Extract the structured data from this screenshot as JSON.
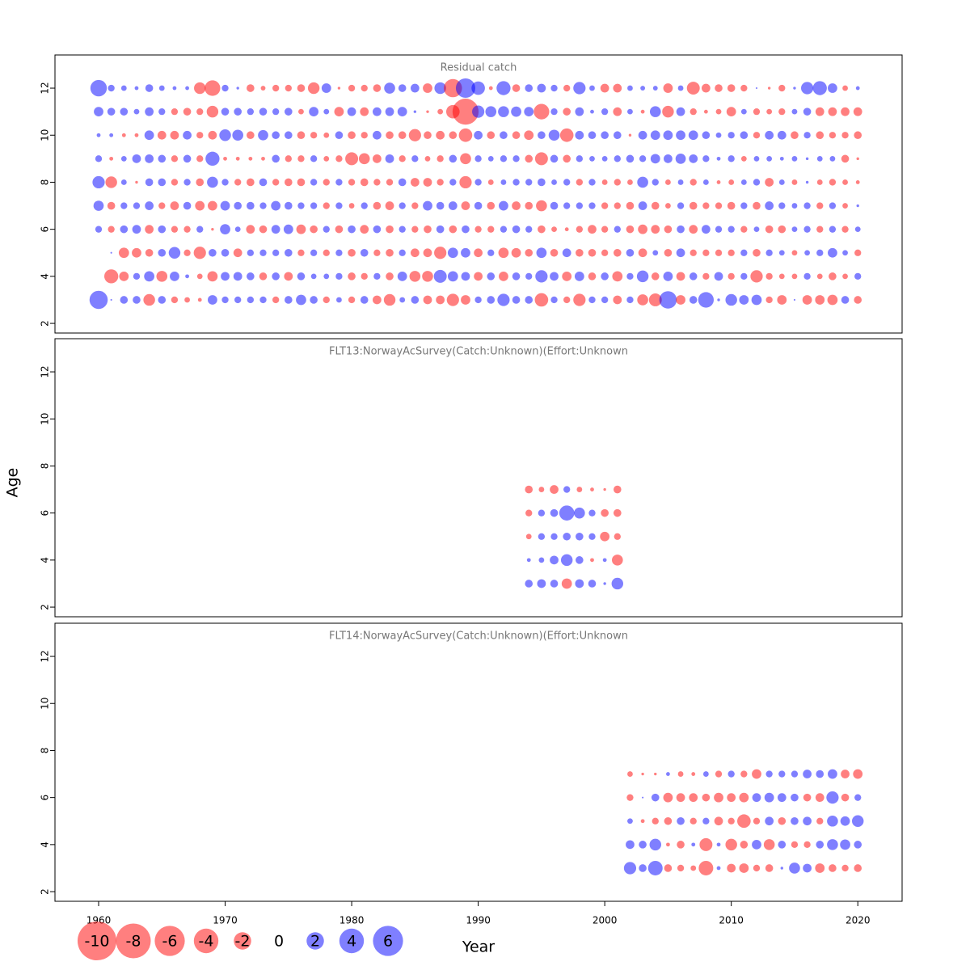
{
  "xlabel": "Year",
  "ylabel": "Age",
  "negative_color": "rgba(255,0,0,0.5)",
  "positive_color": "rgba(0,0,255,0.5)",
  "size_legend": [
    -10,
    -8,
    -6,
    -4,
    -2,
    0,
    2,
    4,
    6
  ],
  "chart_data": [
    {
      "type": "bubble",
      "title": "Residual catch",
      "x": [
        1960,
        1961,
        1962,
        1963,
        1964,
        1965,
        1966,
        1967,
        1968,
        1969,
        1970,
        1971,
        1972,
        1973,
        1974,
        1975,
        1976,
        1977,
        1978,
        1979,
        1980,
        1981,
        1982,
        1983,
        1984,
        1985,
        1986,
        1987,
        1988,
        1989,
        1990,
        1991,
        1992,
        1993,
        1994,
        1995,
        1996,
        1997,
        1998,
        1999,
        2000,
        2001,
        2002,
        2003,
        2004,
        2005,
        2006,
        2007,
        2008,
        2009,
        2010,
        2011,
        2012,
        2013,
        2014,
        2015,
        2016,
        2017,
        2018,
        2019,
        2020
      ],
      "ages": [
        3,
        4,
        5,
        6,
        7,
        8,
        9,
        10,
        11,
        12
      ],
      "residuals": [
        [
          2.2,
          0.02,
          0.4,
          0.4,
          -0.9,
          0.4,
          -0.3,
          -0.2,
          -0.1,
          0.6,
          0.3,
          0.3,
          0.3,
          0.3,
          -0.3,
          0.4,
          0.7,
          0.4,
          -0.3,
          0.2,
          -0.3,
          0.4,
          -0.5,
          -0.9,
          0.2,
          0.4,
          -0.5,
          -0.5,
          -1.0,
          -0.6,
          0.3,
          0.4,
          1.0,
          0.4,
          0.4,
          -1.2,
          0.3,
          -0.3,
          -1.0,
          0.3,
          0.3,
          -0.5,
          0.3,
          -0.8,
          -1.1,
          2.0,
          -0.6,
          0.4,
          1.6,
          0.05,
          0.9,
          0.6,
          0.7,
          -0.3,
          -0.6,
          0.02,
          -0.6,
          -0.6,
          -0.7,
          0.4,
          -0.4
        ],
        [
          null,
          -1.3,
          -0.6,
          0.3,
          0.7,
          -0.8,
          0.6,
          0.1,
          -0.2,
          -0.7,
          0.5,
          0.5,
          0.4,
          -0.4,
          0.4,
          -0.5,
          0.4,
          0.2,
          0.2,
          0.3,
          -0.4,
          -0.3,
          0.3,
          -0.4,
          0.6,
          -0.8,
          -0.8,
          1.1,
          0.7,
          0.5,
          -0.5,
          0.4,
          -0.6,
          0.4,
          0.3,
          1.0,
          0.5,
          -0.6,
          0.6,
          -0.4,
          0.4,
          -0.7,
          0.3,
          0.9,
          -0.4,
          0.6,
          -0.5,
          0.4,
          -0.3,
          0.5,
          -0.3,
          0.3,
          -1.0,
          -0.3,
          -0.2,
          -0.2,
          0.3,
          -0.2,
          -0.4,
          -0.2,
          0.3
        ],
        [
          null,
          0.02,
          -0.7,
          -0.6,
          -0.4,
          0.4,
          0.9,
          -0.3,
          -1.0,
          0.4,
          0.4,
          -0.5,
          0.3,
          0.3,
          0.3,
          0.4,
          -0.3,
          0.3,
          -0.3,
          0.3,
          -0.4,
          0.4,
          -0.3,
          -0.4,
          0.3,
          -0.5,
          -0.5,
          -1.0,
          0.7,
          0.6,
          -0.5,
          0.3,
          -0.7,
          -0.6,
          -0.4,
          0.7,
          -0.4,
          0.5,
          -0.4,
          -0.4,
          -0.3,
          -0.4,
          0.4,
          -0.5,
          0.2,
          -0.4,
          0.5,
          -0.3,
          -0.3,
          -0.3,
          -0.3,
          0.3,
          -0.4,
          0.3,
          0.2,
          -0.2,
          0.2,
          0.3,
          0.6,
          0.2,
          -0.3
        ],
        [
          0.3,
          -0.3,
          0.4,
          0.5,
          -0.5,
          0.4,
          -0.3,
          -0.3,
          0.3,
          -0.05,
          0.7,
          0.2,
          -0.5,
          -0.4,
          0.5,
          0.6,
          -0.6,
          -0.4,
          0.3,
          -0.4,
          0.4,
          -0.5,
          0.4,
          -0.4,
          0.3,
          -0.3,
          -0.4,
          0.4,
          -0.4,
          0.4,
          -0.3,
          -0.3,
          0.3,
          0.4,
          0.3,
          -0.4,
          -0.2,
          -0.1,
          -0.3,
          -0.5,
          -0.3,
          0.3,
          -0.4,
          -0.6,
          -0.5,
          -0.4,
          0.4,
          -0.5,
          0.5,
          0.3,
          0.3,
          -0.3,
          0.2,
          -0.4,
          -0.4,
          0.2,
          0.3,
          -0.3,
          0.3,
          -0.3,
          0.2
        ],
        [
          0.7,
          -0.4,
          0.3,
          0.3,
          0.5,
          -0.3,
          -0.5,
          0.4,
          -0.6,
          -0.6,
          0.6,
          0.4,
          0.4,
          0.3,
          0.6,
          0.4,
          0.3,
          0.3,
          -0.3,
          0.3,
          -0.2,
          0.3,
          -0.4,
          -0.5,
          0.3,
          -0.3,
          0.6,
          0.4,
          0.5,
          -0.5,
          0.4,
          -0.4,
          0.6,
          -0.5,
          -0.4,
          -0.8,
          0.4,
          0.3,
          0.3,
          0.3,
          -0.3,
          -0.3,
          -0.4,
          0.5,
          -0.4,
          -0.2,
          0.3,
          -0.4,
          -0.3,
          -0.3,
          -0.4,
          0.3,
          -0.4,
          0.5,
          0.3,
          0.2,
          0.3,
          -0.3,
          0.3,
          -0.2,
          0.05
        ],
        [
          1.0,
          -0.9,
          0.2,
          -0.05,
          0.4,
          0.4,
          -0.3,
          0.3,
          -0.4,
          0.8,
          0.3,
          -0.3,
          -0.4,
          0.4,
          -0.3,
          -0.4,
          -0.4,
          0.3,
          -0.3,
          0.3,
          -0.3,
          -0.4,
          -0.3,
          -0.3,
          0.4,
          -0.5,
          -0.5,
          -0.3,
          0.3,
          -1.0,
          0.3,
          -0.2,
          0.2,
          0.3,
          0.3,
          0.4,
          0.2,
          0.3,
          -0.3,
          0.3,
          -0.2,
          -0.3,
          -0.2,
          0.8,
          0.3,
          -0.2,
          0.2,
          -0.3,
          0.2,
          -0.1,
          -0.2,
          0.2,
          0.3,
          -0.5,
          0.2,
          -0.2,
          0.05,
          -0.2,
          -0.3,
          -0.2,
          -0.1
        ],
        [
          0.3,
          -0.1,
          0.2,
          0.5,
          0.5,
          0.4,
          -0.3,
          0.4,
          -0.3,
          1.3,
          -0.1,
          -0.1,
          -0.1,
          -0.1,
          0.4,
          -0.3,
          -0.3,
          0.3,
          -0.2,
          -0.3,
          -1.1,
          -0.8,
          -0.5,
          0.5,
          -0.3,
          0.3,
          -0.2,
          -0.3,
          0.4,
          -0.8,
          0.3,
          0.2,
          0.3,
          0.3,
          -0.4,
          -1.1,
          0.4,
          -0.4,
          0.3,
          0.2,
          0.2,
          0.3,
          0.4,
          0.3,
          0.6,
          0.5,
          0.7,
          0.5,
          0.3,
          0.1,
          0.3,
          -0.2,
          0.2,
          0.2,
          0.1,
          0.2,
          0.05,
          0.2,
          0.2,
          -0.4,
          -0.05
        ],
        [
          0.1,
          0.1,
          -0.1,
          -0.1,
          0.6,
          -0.5,
          -0.5,
          0.5,
          -0.3,
          -0.5,
          0.9,
          0.8,
          -0.4,
          0.7,
          0.4,
          0.4,
          -0.4,
          -0.3,
          -0.2,
          0.4,
          -0.4,
          -0.3,
          0.5,
          -0.4,
          -0.4,
          -1.0,
          -0.4,
          -0.5,
          -0.4,
          -1.2,
          0.5,
          -0.4,
          0.4,
          -0.4,
          -0.6,
          0.4,
          0.8,
          -1.2,
          0.5,
          0.4,
          0.4,
          0.4,
          -0.05,
          0.5,
          0.6,
          0.6,
          0.6,
          0.6,
          0.4,
          0.2,
          0.3,
          0.4,
          -0.3,
          0.5,
          0.5,
          -0.4,
          0.3,
          -0.4,
          -0.3,
          -0.3,
          -0.4
        ],
        [
          0.6,
          0.4,
          0.4,
          0.2,
          0.5,
          0.3,
          -0.3,
          -0.4,
          -0.3,
          -0.9,
          0.4,
          0.4,
          0.3,
          0.4,
          0.3,
          0.4,
          -0.2,
          0.6,
          0.2,
          -0.6,
          0.5,
          -0.5,
          0.5,
          0.5,
          0.6,
          0.05,
          -0.05,
          -0.2,
          -1.2,
          -4.5,
          1.0,
          0.8,
          0.8,
          0.7,
          0.6,
          -1.6,
          0.3,
          -0.4,
          0.5,
          0.1,
          0.3,
          -0.5,
          0.2,
          -0.1,
          0.8,
          -0.9,
          0.5,
          -0.3,
          -0.1,
          -0.2,
          -0.6,
          0.2,
          -0.3,
          -0.2,
          -0.3,
          0.2,
          0.4,
          -0.5,
          -0.5,
          -0.5,
          -0.5
        ],
        [
          1.8,
          0.3,
          0.2,
          0.1,
          0.4,
          0.2,
          0.1,
          0.1,
          -0.9,
          -1.6,
          0.3,
          0.05,
          -0.4,
          -0.15,
          -0.3,
          -0.3,
          -0.4,
          -0.9,
          0.6,
          -0.05,
          -0.3,
          -0.3,
          -0.4,
          0.8,
          0.4,
          0.5,
          -0.6,
          0.9,
          -2.2,
          2.5,
          1.2,
          -0.1,
          1.3,
          -0.4,
          0.4,
          0.5,
          0.3,
          -0.3,
          1.0,
          0.2,
          -0.5,
          -0.5,
          0.2,
          0.15,
          0.15,
          -0.6,
          0.2,
          -1.1,
          -0.5,
          -0.4,
          -0.4,
          -0.3,
          0.02,
          -0.05,
          -0.3,
          0.05,
          1.0,
          1.3,
          0.6,
          -0.2,
          0.1
        ]
      ],
      "xlim": [
        1956.55,
        2023.5
      ],
      "ylim": [
        1.59,
        13.41
      ],
      "yticks": [
        2,
        4,
        6,
        8,
        10,
        12
      ]
    },
    {
      "type": "bubble",
      "title": "FLT13:NorwayAcSurvey(Catch:Unknown)(Effort:Unknown",
      "x": [
        1994,
        1995,
        1996,
        1997,
        1998,
        1999,
        2000,
        2001
      ],
      "ages": [
        3,
        4,
        5,
        6,
        7
      ],
      "residuals": [
        [
          0.4,
          0.5,
          0.4,
          -0.7,
          0.5,
          0.4,
          0.05,
          0.9
        ],
        [
          0.1,
          0.2,
          0.5,
          0.9,
          0.4,
          -0.1,
          0.1,
          -0.8
        ],
        [
          -0.2,
          0.3,
          0.3,
          0.4,
          0.4,
          0.3,
          -0.6,
          -0.3
        ],
        [
          -0.3,
          0.3,
          0.4,
          1.5,
          0.8,
          0.3,
          -0.4,
          -0.4
        ],
        [
          -0.4,
          -0.2,
          -0.5,
          0.3,
          -0.2,
          -0.1,
          -0.05,
          -0.4
        ]
      ],
      "xlim": [
        1956.55,
        2023.5
      ],
      "ylim": [
        1.59,
        13.41
      ],
      "yticks": [
        2,
        4,
        6,
        8,
        10,
        12
      ]
    },
    {
      "type": "bubble",
      "title": "FLT14:NorwayAcSurvey(Catch:Unknown)(Effort:Unknown",
      "x": [
        2002,
        2003,
        2004,
        2005,
        2006,
        2007,
        2008,
        2009,
        2010,
        2011,
        2012,
        2013,
        2014,
        2015,
        2016,
        2017,
        2018,
        2019,
        2020
      ],
      "ages": [
        3,
        4,
        5,
        6,
        7
      ],
      "residuals": [
        [
          1.0,
          0.4,
          1.4,
          -0.4,
          -0.3,
          -0.2,
          -1.4,
          0.1,
          -0.5,
          -0.6,
          -0.3,
          -0.4,
          0.05,
          0.8,
          0.5,
          -0.6,
          -0.4,
          -0.3,
          -0.4
        ],
        [
          0.5,
          0.4,
          0.9,
          -0.1,
          -0.4,
          0.1,
          -1.1,
          0.1,
          -0.9,
          -0.4,
          0.6,
          -0.8,
          0.4,
          -0.3,
          -0.3,
          0.4,
          0.8,
          0.7,
          0.4
        ],
        [
          0.2,
          -0.1,
          -0.3,
          -0.4,
          0.4,
          -0.3,
          0.3,
          -0.5,
          -0.3,
          -1.2,
          -0.3,
          0.5,
          -0.4,
          0.4,
          0.5,
          -0.3,
          0.8,
          0.6,
          0.9
        ],
        [
          -0.3,
          0.02,
          0.4,
          -0.6,
          -0.5,
          -0.5,
          -0.4,
          -0.6,
          -0.5,
          -0.6,
          0.5,
          0.6,
          0.5,
          0.4,
          -0.4,
          -0.5,
          1.0,
          -0.4,
          0.3
        ],
        [
          -0.2,
          -0.05,
          -0.05,
          0.1,
          -0.2,
          -0.1,
          0.2,
          -0.3,
          0.3,
          -0.3,
          -0.6,
          0.3,
          0.3,
          0.3,
          0.5,
          0.4,
          0.6,
          -0.5,
          -0.6
        ]
      ],
      "xlim": [
        1956.55,
        2023.5
      ],
      "ylim": [
        1.59,
        13.41
      ],
      "yticks": [
        2,
        4,
        6,
        8,
        10,
        12
      ],
      "xticks": [
        1960,
        1970,
        1980,
        1990,
        2000,
        2010,
        2020
      ]
    }
  ]
}
